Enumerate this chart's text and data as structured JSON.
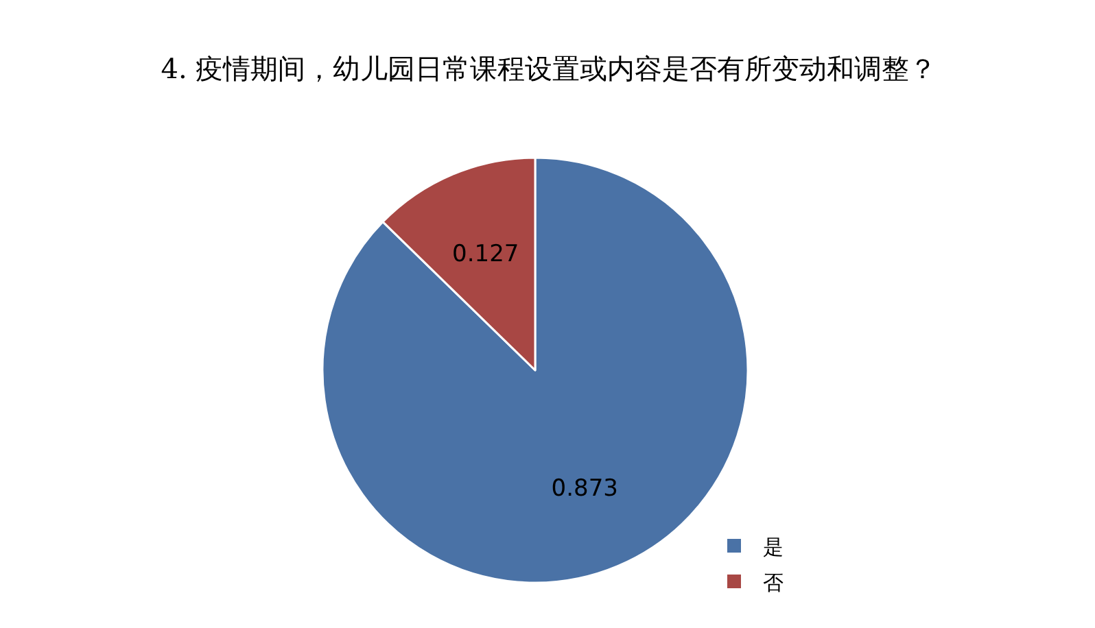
{
  "chart_data": {
    "type": "pie",
    "title": "4.  疫情期间，幼儿园日常课程设置或内容是否有所变动和调整？",
    "categories": [
      "是",
      "否"
    ],
    "values": [
      0.873,
      0.127
    ],
    "colors": [
      "#4a72a6",
      "#a84744"
    ],
    "data_labels": true,
    "legend": "bottom right"
  }
}
